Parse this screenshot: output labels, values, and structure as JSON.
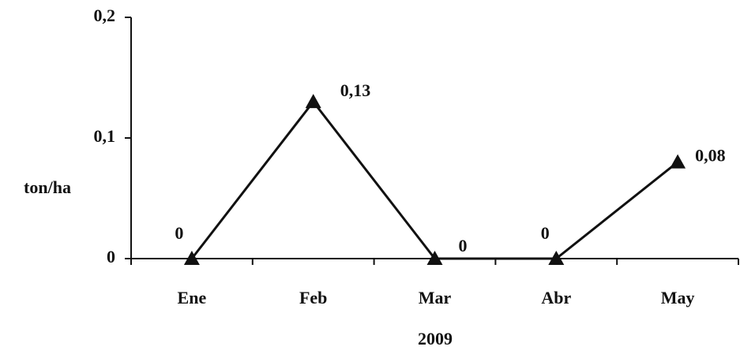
{
  "chart_data": {
    "type": "line",
    "x_label": "2009",
    "y_label": "ton/ha",
    "categories": [
      "Ene",
      "Feb",
      "Mar",
      "Abr",
      "May"
    ],
    "series": [
      {
        "name": "ton/ha",
        "color": "#111111",
        "values": [
          0,
          0.13,
          0,
          0,
          0.08
        ],
        "value_labels": [
          "0",
          "0,13",
          "0",
          "0",
          "0,08"
        ]
      }
    ],
    "ylim": [
      0,
      0.2
    ],
    "yticks": [
      0,
      {
        "value": 0.1,
        "label": "0,1"
      },
      {
        "value": 0.2,
        "label": "0,2"
      }
    ]
  }
}
